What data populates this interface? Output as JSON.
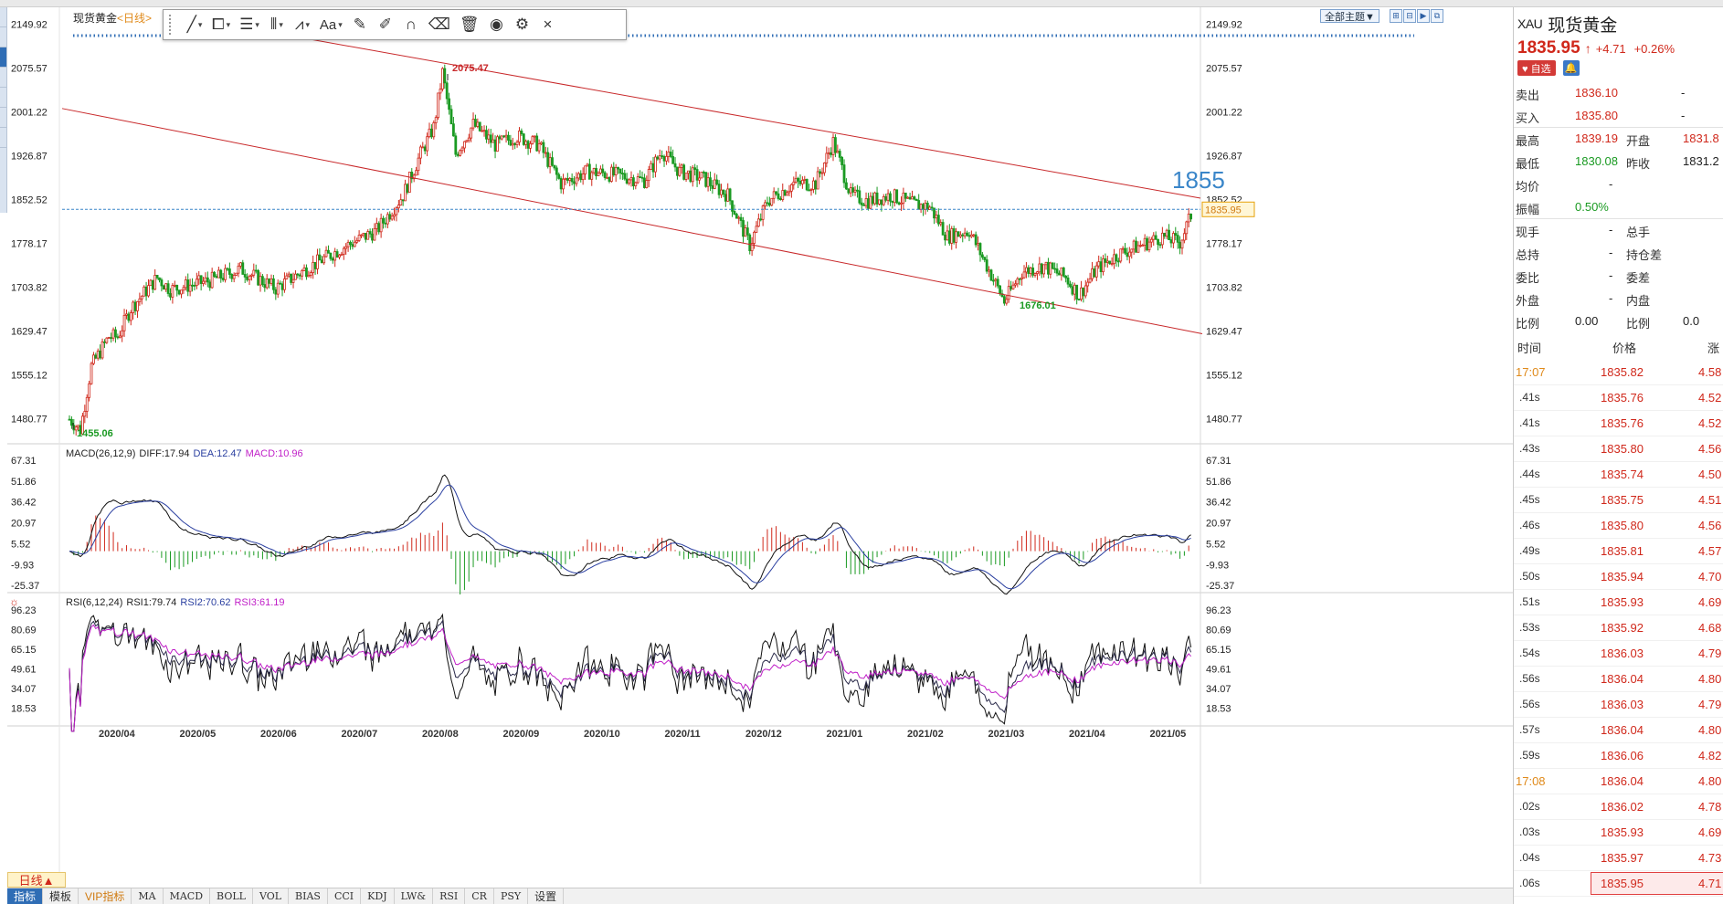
{
  "window": {
    "symbol_name": "现货黄金",
    "period": "日线"
  },
  "drawing_toolbar": {
    "font_button": "Aa",
    "close_label": "×"
  },
  "chart_header": {
    "theme_button": "全部主题▼"
  },
  "main_chart": {
    "price_axis_labels": [
      "2149.92",
      "2075.57",
      "2001.22",
      "1926.87",
      "1852.52",
      "1778.17",
      "1703.82",
      "1629.47",
      "1555.12",
      "1480.77"
    ],
    "price_axis_min": 1440,
    "price_axis_max": 2160,
    "current_price_tag": "1835.95",
    "annotation_large": "1855",
    "marker_high": "2075.47",
    "marker_low": "1455.06",
    "marker_mid_low": "1676.01",
    "x_axis_labels": [
      "2020/04",
      "2020/05",
      "2020/06",
      "2020/07",
      "2020/08",
      "2020/09",
      "2020/10",
      "2020/11",
      "2020/12",
      "2021/01",
      "2021/02",
      "2021/03",
      "2021/04",
      "2021/05"
    ]
  },
  "macd": {
    "title": "MACD(26,12,9)",
    "diff_label": "DIFF:17.94",
    "dea_label": "DEA:12.47",
    "macd_label": "MACD:10.96",
    "axis_labels": [
      "67.31",
      "51.86",
      "36.42",
      "20.97",
      "5.52",
      "-9.93",
      "-25.37"
    ]
  },
  "rsi": {
    "title": "RSI(6,12,24)",
    "rsi1_label": "RSI1:79.74",
    "rsi2_label": "RSI2:70.62",
    "rsi3_label": "RSI3:61.19",
    "axis_labels": [
      "96.23",
      "80.69",
      "65.15",
      "49.61",
      "34.07",
      "18.53"
    ]
  },
  "bottom_tabs": [
    {
      "label": "指标",
      "style": "active"
    },
    {
      "label": "模板",
      "style": "sans"
    },
    {
      "label": "VIP指标",
      "style": "vip"
    },
    {
      "label": "MA",
      "style": ""
    },
    {
      "label": "MACD",
      "style": ""
    },
    {
      "label": "BOLL",
      "style": ""
    },
    {
      "label": "VOL",
      "style": ""
    },
    {
      "label": "BIAS",
      "style": ""
    },
    {
      "label": "CCI",
      "style": ""
    },
    {
      "label": "KDJ",
      "style": ""
    },
    {
      "label": "LW&",
      "style": ""
    },
    {
      "label": "RSI",
      "style": ""
    },
    {
      "label": "CR",
      "style": ""
    },
    {
      "label": "PSY",
      "style": ""
    },
    {
      "label": "设置",
      "style": "sans"
    }
  ],
  "period_tab": "日线▲",
  "quote": {
    "code": "XAU",
    "name": "现货黄金",
    "last": "1835.95",
    "change": "+4.71",
    "change_pct": "+0.26%",
    "fav_button": "♥ 自选",
    "rows": [
      {
        "l1": "卖出",
        "v1": "1836.10",
        "v1c": "red",
        "l2": "",
        "v2": "-",
        "v2c": "dark"
      },
      {
        "l1": "买入",
        "v1": "1835.80",
        "v1c": "red",
        "l2": "",
        "v2": "-",
        "v2c": "dark"
      },
      {
        "l1": "最高",
        "v1": "1839.19",
        "v1c": "red",
        "l2": "开盘",
        "v2": "1831.8",
        "v2c": "red"
      },
      {
        "l1": "最低",
        "v1": "1830.08",
        "v1c": "green",
        "l2": "昨收",
        "v2": "1831.2",
        "v2c": "dark"
      },
      {
        "l1": "均价",
        "v1": "-",
        "v1c": "dark",
        "l2": "",
        "v2": "",
        "v2c": "dark"
      },
      {
        "l1": "振幅",
        "v1": "0.50%",
        "v1c": "green",
        "l2": "",
        "v2": "",
        "v2c": "dark"
      },
      {
        "l1": "现手",
        "v1": "-",
        "v1c": "dark",
        "l2": "总手",
        "v2": "",
        "v2c": "dark"
      },
      {
        "l1": "总持",
        "v1": "-",
        "v1c": "dark",
        "l2": "持仓差",
        "v2": "",
        "v2c": "dark"
      },
      {
        "l1": "委比",
        "v1": "-",
        "v1c": "dark",
        "l2": "委差",
        "v2": "",
        "v2c": "dark"
      },
      {
        "l1": "外盘",
        "v1": "-",
        "v1c": "dark",
        "l2": "内盘",
        "v2": "",
        "v2c": "dark"
      },
      {
        "l1": "比例",
        "v1": "0.00",
        "v1c": "dark",
        "l2": "比例",
        "v2": "0.0",
        "v2c": "dark"
      }
    ],
    "tick_header": {
      "time": "时间",
      "price": "价格",
      "change": "涨"
    },
    "ticks": [
      {
        "time": "17:07",
        "orange": true,
        "price": "1835.82",
        "chg": "4.58"
      },
      {
        "time": ".41s",
        "orange": false,
        "price": "1835.76",
        "chg": "4.52"
      },
      {
        "time": ".41s",
        "orange": false,
        "price": "1835.76",
        "chg": "4.52"
      },
      {
        "time": ".43s",
        "orange": false,
        "price": "1835.80",
        "chg": "4.56"
      },
      {
        "time": ".44s",
        "orange": false,
        "price": "1835.74",
        "chg": "4.50"
      },
      {
        "time": ".45s",
        "orange": false,
        "price": "1835.75",
        "chg": "4.51"
      },
      {
        "time": ".46s",
        "orange": false,
        "price": "1835.80",
        "chg": "4.56"
      },
      {
        "time": ".49s",
        "orange": false,
        "price": "1835.81",
        "chg": "4.57"
      },
      {
        "time": ".50s",
        "orange": false,
        "price": "1835.94",
        "chg": "4.70"
      },
      {
        "time": ".51s",
        "orange": false,
        "price": "1835.93",
        "chg": "4.69"
      },
      {
        "time": ".53s",
        "orange": false,
        "price": "1835.92",
        "chg": "4.68"
      },
      {
        "time": ".54s",
        "orange": false,
        "price": "1836.03",
        "chg": "4.79"
      },
      {
        "time": ".56s",
        "orange": false,
        "price": "1836.04",
        "chg": "4.80"
      },
      {
        "time": ".56s",
        "orange": false,
        "price": "1836.03",
        "chg": "4.79"
      },
      {
        "time": ".57s",
        "orange": false,
        "price": "1836.04",
        "chg": "4.80"
      },
      {
        "time": ".59s",
        "orange": false,
        "price": "1836.06",
        "chg": "4.82"
      },
      {
        "time": "17:08",
        "orange": true,
        "price": "1836.04",
        "chg": "4.80"
      },
      {
        "time": ".02s",
        "orange": false,
        "price": "1836.02",
        "chg": "4.78"
      },
      {
        "time": ".03s",
        "orange": false,
        "price": "1835.93",
        "chg": "4.69"
      },
      {
        "time": ".04s",
        "orange": false,
        "price": "1835.97",
        "chg": "4.73"
      },
      {
        "time": ".06s",
        "orange": false,
        "price": "1835.95",
        "chg": "4.71"
      }
    ]
  },
  "colors": {
    "up": "#d0281b",
    "down": "#1a9a22",
    "channel": "#c8282a",
    "macd_dea": "#2a3fa0",
    "rsi3": "#c020c8",
    "accent_blue": "#3a86c9"
  }
}
